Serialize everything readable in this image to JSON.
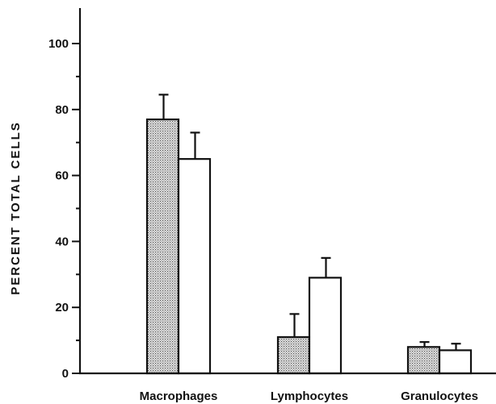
{
  "chart_data": {
    "type": "bar",
    "title": "",
    "xlabel": "",
    "ylabel": "PERCENT TOTAL CELLS",
    "ylim": [
      0,
      110
    ],
    "yticks": [
      0,
      20,
      40,
      60,
      80,
      100
    ],
    "ytick_labels": [
      "0",
      "20",
      "40",
      "60",
      "80",
      "100"
    ],
    "minor_ticks": [
      10,
      30,
      50,
      70,
      90
    ],
    "grid": false,
    "legend": "none",
    "categories": [
      "Macrophages",
      "Lymphocytes",
      "Granulocytes"
    ],
    "series": [
      {
        "fill": "stippled",
        "color": "#c8c8c8",
        "values": [
          77,
          11,
          8
        ],
        "errors": [
          7.5,
          7,
          1.5
        ]
      },
      {
        "fill": "open",
        "color": "#ffffff",
        "values": [
          65,
          29,
          7
        ],
        "errors": [
          8,
          6,
          2
        ]
      }
    ]
  }
}
